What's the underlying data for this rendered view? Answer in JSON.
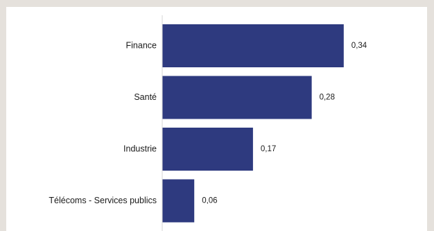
{
  "colors": {
    "bar": "#2e3a7f",
    "axis": "#d4d4d4",
    "background": "#e5e1dc",
    "card": "#ffffff"
  },
  "chart_data": {
    "type": "bar",
    "orientation": "horizontal",
    "categories": [
      "Finance",
      "Santé",
      "Industrie",
      "Télécoms - Services publics"
    ],
    "values": [
      0.34,
      0.28,
      0.17,
      0.06
    ],
    "value_labels": [
      "0,34",
      "0,28",
      "0,17",
      "0,06"
    ],
    "title": "",
    "xlabel": "",
    "ylabel": "",
    "xlim": [
      0,
      0.4
    ],
    "grid": false,
    "legend": "none"
  }
}
